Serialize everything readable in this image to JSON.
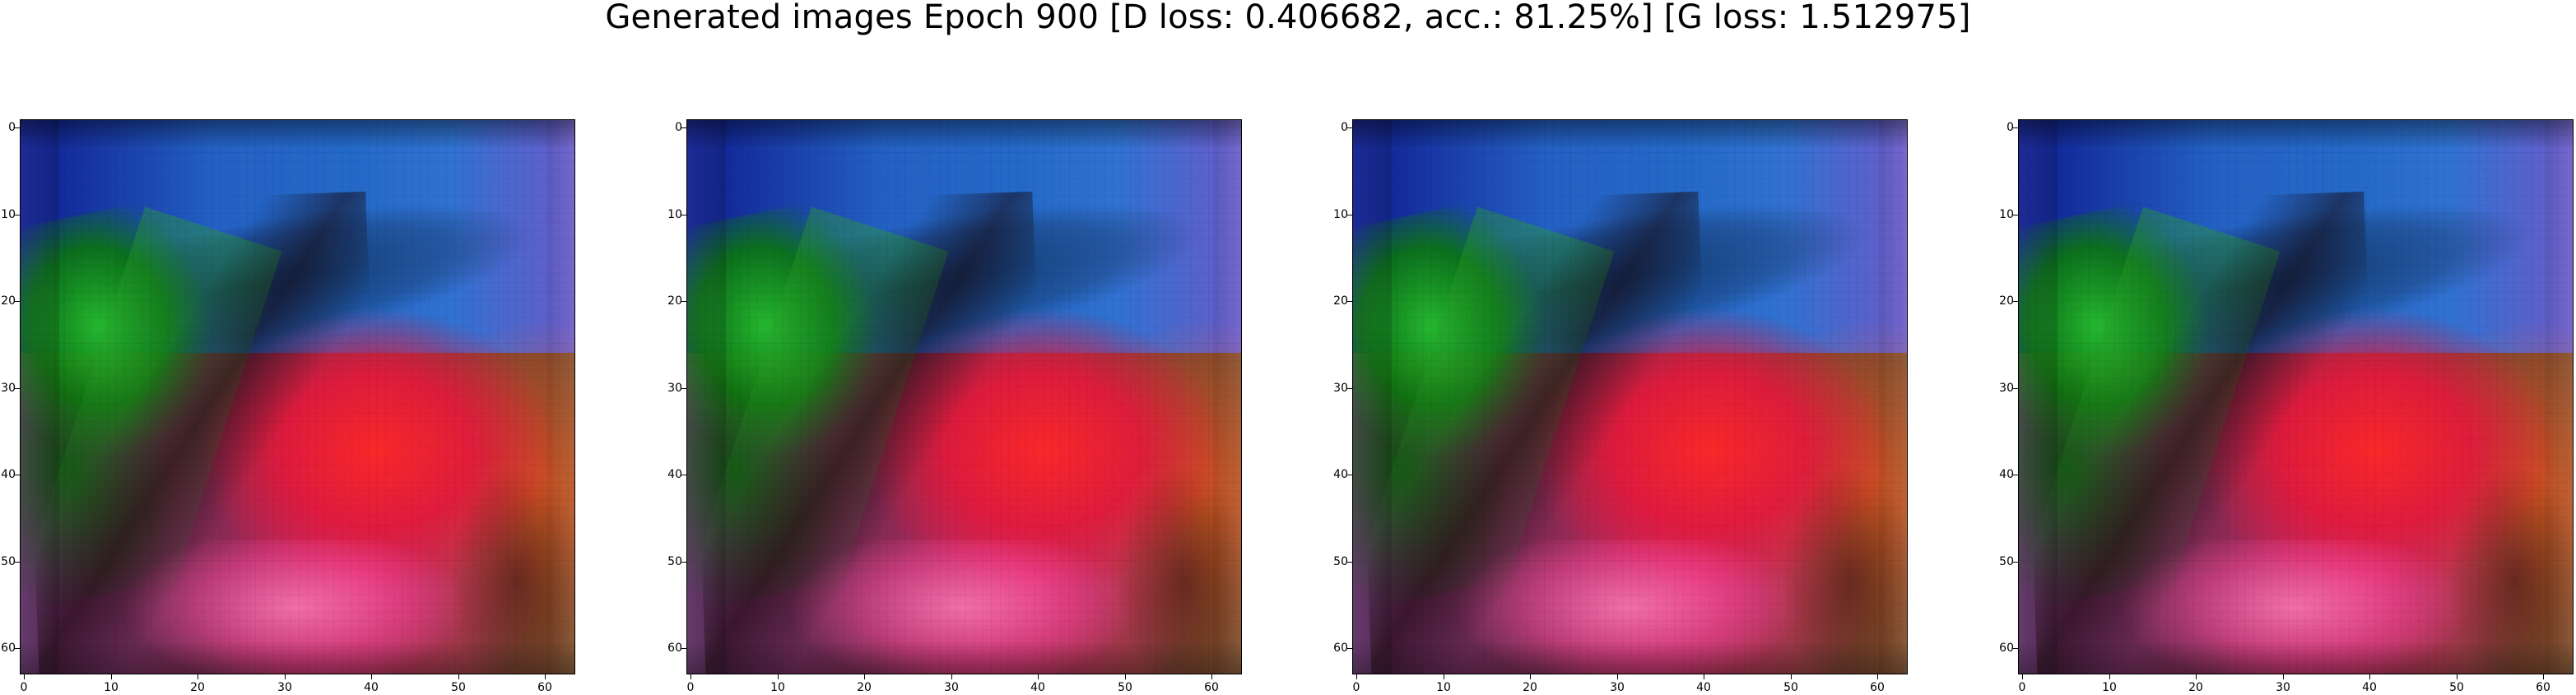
{
  "title": "Generated images Epoch 900 [D loss: 0.406682, acc.: 81.25%] [G loss: 1.512975]",
  "panels": [
    {
      "y_ticks": [
        "0",
        "10",
        "20",
        "30",
        "40",
        "50",
        "60"
      ],
      "x_ticks": [
        "0",
        "10",
        "20",
        "30",
        "40",
        "50",
        "60"
      ]
    },
    {
      "y_ticks": [
        "0",
        "10",
        "20",
        "30",
        "40",
        "50",
        "60"
      ],
      "x_ticks": [
        "0",
        "10",
        "20",
        "30",
        "40",
        "50",
        "60"
      ]
    },
    {
      "y_ticks": [
        "0",
        "10",
        "20",
        "30",
        "40",
        "50",
        "60"
      ],
      "x_ticks": [
        "0",
        "10",
        "20",
        "30",
        "40",
        "50",
        "60"
      ]
    },
    {
      "y_ticks": [
        "0",
        "10",
        "20",
        "30",
        "40",
        "50",
        "60"
      ],
      "x_ticks": [
        "0",
        "10",
        "20",
        "30",
        "40",
        "50",
        "60"
      ]
    }
  ]
}
